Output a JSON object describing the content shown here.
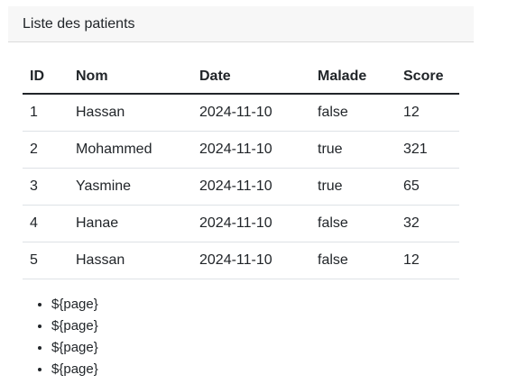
{
  "header": {
    "title": "Liste des patients"
  },
  "table": {
    "columns": [
      "ID",
      "Nom",
      "Date",
      "Malade",
      "Score"
    ],
    "rows": [
      {
        "id": "1",
        "nom": "Hassan",
        "date": "2024-11-10",
        "malade": "false",
        "score": "12"
      },
      {
        "id": "2",
        "nom": "Mohammed",
        "date": "2024-11-10",
        "malade": "true",
        "score": "321"
      },
      {
        "id": "3",
        "nom": "Yasmine",
        "date": "2024-11-10",
        "malade": "true",
        "score": "65"
      },
      {
        "id": "4",
        "nom": "Hanae",
        "date": "2024-11-10",
        "malade": "false",
        "score": "32"
      },
      {
        "id": "5",
        "nom": "Hassan",
        "date": "2024-11-10",
        "malade": "false",
        "score": "12"
      }
    ]
  },
  "pagination": {
    "items": [
      "${page}",
      "${page}",
      "${page}",
      "${page}"
    ]
  }
}
